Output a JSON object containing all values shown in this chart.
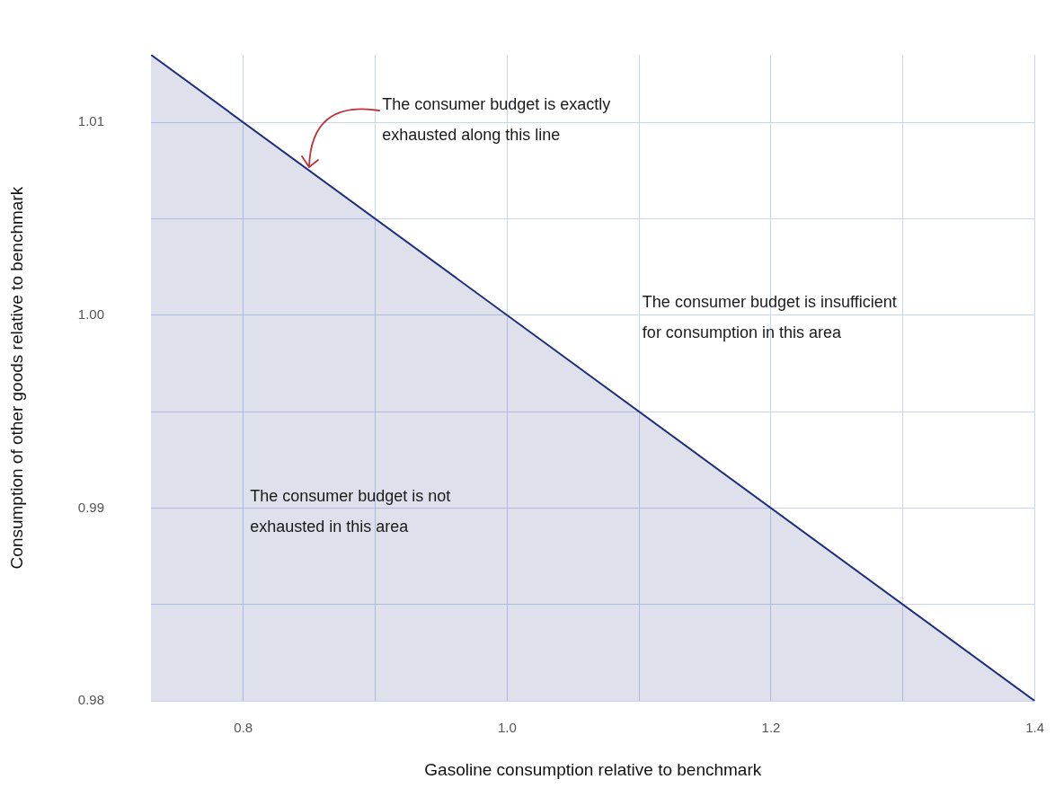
{
  "chart_data": {
    "type": "area",
    "xlabel": "Gasoline consumption relative to benchmark",
    "ylabel": "Consumption of other goods relative to benchmark",
    "series": [
      {
        "color": "#1f2e7a",
        "x": [
          0.73,
          1.4
        ],
        "values": [
          1.0135,
          0.98
        ]
      }
    ],
    "xlim": [
      0.73,
      1.4
    ],
    "ylim": [
      0.98,
      1.0135
    ],
    "xticks": [
      {
        "value": 0.8,
        "label": "0.8"
      },
      {
        "value": 0.9,
        "label": null
      },
      {
        "value": 1.0,
        "label": "1.0"
      },
      {
        "value": 1.1,
        "label": null
      },
      {
        "value": 1.2,
        "label": "1.2"
      },
      {
        "value": 1.3,
        "label": null
      },
      {
        "value": 1.4,
        "label": "1.4"
      }
    ],
    "yticks": [
      {
        "value": 0.98,
        "label": "0.98"
      },
      {
        "value": 0.985,
        "label": null
      },
      {
        "value": 0.99,
        "label": "0.99"
      },
      {
        "value": 0.995,
        "label": null
      },
      {
        "value": 1.0,
        "label": "1.00"
      },
      {
        "value": 1.005,
        "label": null
      },
      {
        "value": 1.01,
        "label": "1.01"
      }
    ],
    "grid": true,
    "legend": false,
    "annotations": [
      {
        "text": "The consumer budget is exactly\nexhausted along this line",
        "x": 0.85,
        "y": 1.0075
      },
      "The consumer budget is insufficient\nfor consumption in this area",
      "The consumer budget is not\nexhausted in this area"
    ]
  }
}
